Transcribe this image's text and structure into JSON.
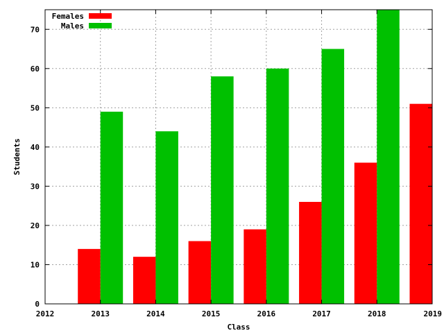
{
  "chart_data": {
    "type": "bar",
    "title": "",
    "xlabel": "Class",
    "ylabel": "Students",
    "categories": [
      "2013",
      "2014",
      "2015",
      "2016",
      "2017",
      "2018",
      "2019"
    ],
    "x_ticks": [
      "2012",
      "2013",
      "2014",
      "2015",
      "2016",
      "2017",
      "2018",
      "2019"
    ],
    "y_ticks": [
      "0",
      "10",
      "20",
      "30",
      "40",
      "50",
      "60",
      "70"
    ],
    "ylim": [
      0,
      75
    ],
    "grid": true,
    "legend_position": "top-left",
    "series": [
      {
        "name": "Females",
        "color": "#ff0000",
        "values": [
          14,
          12,
          16,
          19,
          26,
          36,
          51
        ]
      },
      {
        "name": "Males",
        "color": "#00c000",
        "values": [
          49,
          44,
          58,
          60,
          65,
          75,
          null
        ]
      }
    ]
  }
}
